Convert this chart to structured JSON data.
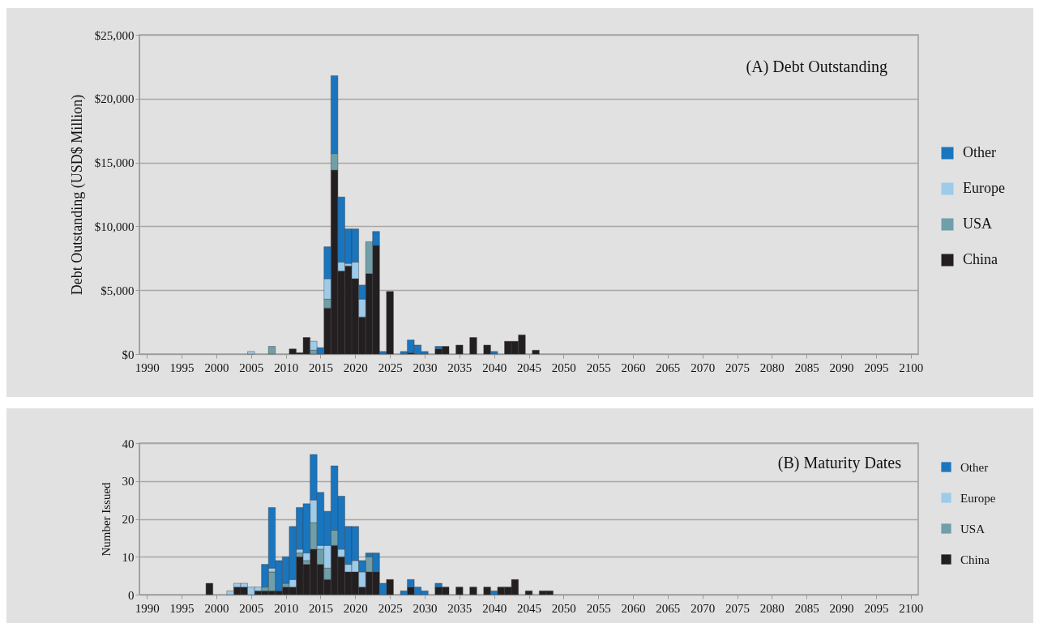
{
  "chart_data": [
    {
      "type": "bar",
      "title": "(A) Debt Outstanding",
      "ylabel": "Debt Outstanding (USD$ Million)",
      "stacked": true,
      "grid": "y",
      "legend": "right",
      "ylim": [
        0,
        25000
      ],
      "yticks": [
        {
          "value": 0,
          "label": "$0"
        },
        {
          "value": 5000,
          "label": "$5,000"
        },
        {
          "value": 10000,
          "label": "$10,000"
        },
        {
          "value": 15000,
          "label": "$15,000"
        },
        {
          "value": 20000,
          "label": "$20,000"
        },
        {
          "value": 25000,
          "label": "$25,000"
        }
      ],
      "categories": [
        "1990",
        null,
        null,
        null,
        null,
        "1995",
        null,
        null,
        null,
        null,
        "2000",
        null,
        null,
        null,
        null,
        "2005",
        null,
        null,
        null,
        null,
        "2010",
        null,
        null,
        null,
        null,
        "2015",
        null,
        null,
        null,
        null,
        "2020",
        null,
        null,
        null,
        null,
        "2025",
        null,
        null,
        null,
        null,
        "2030",
        null,
        null,
        null,
        null,
        "2035",
        null,
        null,
        null,
        null,
        "2040",
        null,
        null,
        null,
        null,
        "2045",
        null,
        null,
        null,
        null,
        "2050",
        null,
        null,
        null,
        null,
        "2055",
        null,
        null,
        null,
        null,
        "2060",
        null,
        null,
        null,
        null,
        "2065",
        null,
        null,
        null,
        null,
        "2070",
        null,
        null,
        null,
        null,
        "2075",
        null,
        null,
        null,
        null,
        "2080",
        null,
        null,
        null,
        null,
        "2085",
        null,
        null,
        null,
        null,
        "2090",
        null,
        null,
        null,
        null,
        "2095",
        null,
        null,
        null,
        null,
        "2100"
      ],
      "series": [
        {
          "name": "China",
          "color": "#231f20",
          "values": [
            null,
            null,
            null,
            null,
            null,
            null,
            null,
            null,
            null,
            null,
            null,
            null,
            null,
            null,
            null,
            null,
            null,
            null,
            null,
            null,
            null,
            400,
            100,
            1300,
            null,
            null,
            3600,
            14400,
            6500,
            6900,
            5900,
            2900,
            6300,
            8500,
            null,
            4900,
            null,
            null,
            100,
            null,
            null,
            null,
            400,
            600,
            null,
            700,
            null,
            1300,
            null,
            700,
            null,
            null,
            1000,
            1000,
            1500,
            null,
            300,
            null,
            null,
            null,
            null,
            null,
            null,
            null,
            null,
            null,
            null,
            null,
            null,
            null,
            null,
            null,
            null,
            null,
            null,
            null,
            null,
            null,
            null,
            null,
            null,
            null,
            null,
            null,
            null,
            null,
            null,
            null,
            null,
            null,
            null,
            null,
            null,
            null,
            null,
            null,
            null,
            null,
            null,
            null,
            null,
            null,
            null,
            null,
            null,
            null,
            null,
            null,
            null,
            null,
            null
          ]
        },
        {
          "name": "USA",
          "color": "#6f9fa8",
          "values": [
            null,
            null,
            null,
            null,
            null,
            null,
            null,
            null,
            null,
            null,
            null,
            null,
            null,
            null,
            null,
            null,
            null,
            null,
            600,
            null,
            null,
            null,
            null,
            null,
            300,
            null,
            700,
            1300,
            null,
            null,
            null,
            null,
            2500,
            null,
            null,
            null,
            null,
            null,
            null,
            null,
            null,
            null,
            null,
            null,
            null,
            null,
            null,
            null,
            null,
            null,
            null,
            null,
            null,
            null,
            null,
            null,
            null,
            null,
            null,
            null,
            null,
            null,
            null,
            null,
            null,
            null,
            null,
            null,
            null,
            null,
            null,
            null,
            null,
            null,
            null,
            null,
            null,
            null,
            null,
            null,
            null,
            null,
            null,
            null,
            null,
            null,
            null,
            null,
            null,
            null,
            null,
            null,
            null,
            null,
            null,
            null,
            null,
            null,
            null,
            null,
            null,
            null,
            null,
            null,
            null,
            null,
            null,
            null,
            null,
            null,
            null
          ]
        },
        {
          "name": "Europe",
          "color": "#9dcbea",
          "values": [
            null,
            null,
            null,
            null,
            null,
            null,
            null,
            null,
            null,
            null,
            null,
            null,
            null,
            null,
            null,
            200,
            null,
            null,
            null,
            null,
            null,
            null,
            null,
            null,
            700,
            null,
            1600,
            null,
            700,
            200,
            1300,
            1400,
            null,
            null,
            null,
            null,
            null,
            null,
            null,
            null,
            null,
            null,
            null,
            null,
            null,
            null,
            null,
            null,
            null,
            null,
            null,
            null,
            null,
            null,
            null,
            null,
            null,
            null,
            null,
            null,
            null,
            null,
            null,
            null,
            null,
            null,
            null,
            null,
            null,
            null,
            null,
            null,
            null,
            null,
            null,
            null,
            null,
            null,
            null,
            null,
            null,
            null,
            null,
            null,
            null,
            null,
            null,
            null,
            null,
            null,
            null,
            null,
            null,
            null,
            null,
            null,
            null,
            null,
            null,
            null,
            null,
            null,
            null,
            null,
            null,
            null,
            null,
            null,
            null,
            null,
            null
          ]
        },
        {
          "name": "Other",
          "color": "#1a75bf",
          "values": [
            null,
            null,
            null,
            null,
            null,
            null,
            null,
            null,
            null,
            null,
            null,
            null,
            null,
            null,
            null,
            null,
            null,
            null,
            null,
            null,
            null,
            null,
            null,
            null,
            null,
            500,
            2500,
            6100,
            5100,
            2700,
            2600,
            1100,
            null,
            1100,
            200,
            null,
            null,
            200,
            1000,
            700,
            200,
            null,
            200,
            null,
            null,
            null,
            null,
            null,
            null,
            null,
            200,
            null,
            null,
            null,
            null,
            null,
            null,
            null,
            null,
            null,
            null,
            null,
            null,
            null,
            null,
            null,
            null,
            null,
            null,
            null,
            null,
            null,
            null,
            null,
            null,
            null,
            null,
            null,
            null,
            null,
            null,
            null,
            null,
            null,
            null,
            null,
            null,
            null,
            null,
            null,
            null,
            null,
            null,
            null,
            null,
            null,
            null,
            null,
            null,
            null,
            null,
            null,
            null,
            null,
            null,
            null,
            null,
            null,
            null,
            null,
            null
          ]
        }
      ]
    },
    {
      "type": "bar",
      "title": "(B) Maturity Dates",
      "ylabel": "Number Issued",
      "stacked": true,
      "grid": "y",
      "legend": "right",
      "ylim": [
        0,
        40
      ],
      "yticks": [
        0,
        10,
        20,
        30,
        40
      ],
      "categories": [
        "1990",
        null,
        null,
        null,
        null,
        "1995",
        null,
        null,
        null,
        null,
        "2000",
        null,
        null,
        null,
        null,
        "2005",
        null,
        null,
        null,
        null,
        "2010",
        null,
        null,
        null,
        null,
        "2015",
        null,
        null,
        null,
        null,
        "2020",
        null,
        null,
        null,
        null,
        "2025",
        null,
        null,
        null,
        null,
        "2030",
        null,
        null,
        null,
        null,
        "2035",
        null,
        null,
        null,
        null,
        "2040",
        null,
        null,
        null,
        null,
        "2045",
        null,
        null,
        null,
        null,
        "2050",
        null,
        null,
        null,
        null,
        "2055",
        null,
        null,
        null,
        null,
        "2060",
        null,
        null,
        null,
        null,
        "2065",
        null,
        null,
        null,
        null,
        "2070",
        null,
        null,
        null,
        null,
        "2075",
        null,
        null,
        null,
        null,
        "2080",
        null,
        null,
        null,
        null,
        "2085",
        null,
        null,
        null,
        null,
        "2090",
        null,
        null,
        null,
        null,
        "2095",
        null,
        null,
        null,
        null,
        "2100"
      ],
      "series": [
        {
          "name": "China",
          "color": "#231f20",
          "values": [
            null,
            null,
            null,
            null,
            null,
            null,
            null,
            null,
            null,
            3,
            null,
            null,
            null,
            2,
            2,
            null,
            1,
            1,
            1,
            1,
            2,
            2,
            10,
            8,
            12,
            8,
            4,
            13,
            10,
            6,
            6,
            2,
            6,
            6,
            null,
            4,
            null,
            null,
            2,
            null,
            null,
            null,
            2,
            2,
            null,
            2,
            null,
            2,
            null,
            2,
            null,
            2,
            2,
            4,
            null,
            1,
            null,
            1,
            1,
            null,
            null,
            null,
            null,
            null,
            null,
            null,
            null,
            null,
            null,
            null,
            null,
            null,
            null,
            null,
            null,
            null,
            null,
            null,
            null,
            null,
            null,
            null,
            null,
            null,
            null,
            null,
            null,
            null,
            null,
            null,
            null,
            null,
            null,
            null,
            null,
            null,
            null,
            null,
            null,
            null,
            null,
            null,
            null,
            null,
            null,
            null,
            null,
            null,
            null,
            null,
            null
          ]
        },
        {
          "name": "USA",
          "color": "#6f9fa8",
          "values": [
            null,
            null,
            null,
            null,
            null,
            null,
            null,
            null,
            null,
            null,
            null,
            null,
            null,
            null,
            null,
            null,
            null,
            1,
            5,
            null,
            1,
            null,
            1,
            1,
            7,
            4,
            3,
            4,
            null,
            null,
            null,
            null,
            4,
            null,
            null,
            null,
            null,
            null,
            null,
            null,
            null,
            null,
            null,
            null,
            null,
            null,
            null,
            null,
            null,
            null,
            null,
            null,
            null,
            null,
            null,
            null,
            null,
            null,
            null,
            null,
            null,
            null,
            null,
            null,
            null,
            null,
            null,
            null,
            null,
            null,
            null,
            null,
            null,
            null,
            null,
            null,
            null,
            null,
            null,
            null,
            null,
            null,
            null,
            null,
            null,
            null,
            null,
            null,
            null,
            null,
            null,
            null,
            null,
            null,
            null,
            null,
            null,
            null,
            null,
            null,
            null,
            null,
            null,
            null,
            null,
            null,
            null,
            null,
            null,
            null,
            null
          ]
        },
        {
          "name": "Europe",
          "color": "#9dcbea",
          "values": [
            null,
            null,
            null,
            null,
            null,
            null,
            null,
            null,
            null,
            null,
            null,
            null,
            1,
            1,
            1,
            2,
            1,
            null,
            1,
            null,
            null,
            2,
            1,
            2,
            6,
            1,
            6,
            null,
            2,
            2,
            3,
            4,
            null,
            null,
            null,
            null,
            null,
            null,
            null,
            null,
            null,
            null,
            null,
            null,
            null,
            null,
            null,
            null,
            null,
            null,
            null,
            null,
            null,
            null,
            null,
            null,
            null,
            null,
            null,
            null,
            null,
            null,
            null,
            null,
            null,
            null,
            null,
            null,
            null,
            null,
            null,
            null,
            null,
            null,
            null,
            null,
            null,
            null,
            null,
            null,
            null,
            null,
            null,
            null,
            null,
            null,
            null,
            null,
            null,
            null,
            null,
            null,
            null,
            null,
            null,
            null,
            null,
            null,
            null,
            null,
            null,
            null,
            null,
            null,
            null,
            null,
            null,
            null,
            null,
            null,
            null
          ]
        },
        {
          "name": "Other",
          "color": "#1a75bf",
          "values": [
            null,
            null,
            null,
            null,
            null,
            null,
            null,
            null,
            null,
            null,
            null,
            null,
            null,
            null,
            null,
            null,
            null,
            6,
            16,
            8,
            7,
            14,
            11,
            13,
            12,
            14,
            9,
            17,
            14,
            10,
            9,
            3,
            1,
            5,
            3,
            null,
            null,
            1,
            2,
            2,
            1,
            null,
            1,
            null,
            null,
            null,
            null,
            null,
            null,
            null,
            1,
            null,
            null,
            null,
            null,
            null,
            null,
            null,
            null,
            null,
            null,
            null,
            null,
            null,
            null,
            null,
            null,
            null,
            null,
            null,
            null,
            null,
            null,
            null,
            null,
            null,
            null,
            null,
            null,
            null,
            null,
            null,
            null,
            null,
            null,
            null,
            null,
            null,
            null,
            null,
            null,
            null,
            null,
            null,
            null,
            null,
            null,
            null,
            null,
            null,
            null,
            null,
            null,
            null,
            null,
            null,
            null,
            null,
            null,
            null,
            null
          ]
        }
      ]
    }
  ]
}
